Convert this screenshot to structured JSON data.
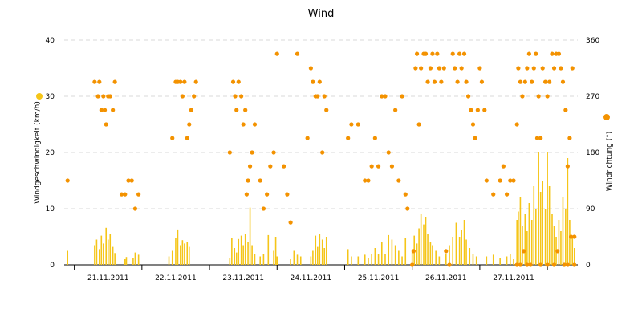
{
  "chart_data": {
    "type": "bar+scatter",
    "title": "Wind",
    "xlabel": "",
    "colors": {
      "speed": "#f5c518",
      "direction": "#f39200",
      "grid": "#d9d9d9",
      "axis": "#000000"
    },
    "grid": true,
    "x_tick_labels": [
      "21.11.2011",
      "22.11.2011",
      "23.11.2011",
      "24.11.2011",
      "25.11.2011",
      "26.11.2011",
      "27.11.2011"
    ],
    "left_axis": {
      "label": "Windgeschwindigkeit (km/h)",
      "ylim": [
        0,
        40
      ],
      "ticks": [
        0,
        10,
        20,
        30,
        40
      ]
    },
    "right_axis": {
      "label": "Windrichtung (°)",
      "ylim": [
        0,
        360
      ],
      "ticks": [
        0,
        90,
        180,
        270,
        360
      ]
    },
    "series": [
      {
        "name": "Windgeschwindigkeit",
        "kind": "bar",
        "axis": "left",
        "points": [
          [
            20.9,
            2.5
          ],
          [
            21.3,
            3.5
          ],
          [
            21.33,
            4.5
          ],
          [
            21.37,
            2.8
          ],
          [
            21.4,
            5.2
          ],
          [
            21.43,
            3.8
          ],
          [
            21.47,
            6.6
          ],
          [
            21.5,
            4.5
          ],
          [
            21.53,
            5.5
          ],
          [
            21.57,
            3.2
          ],
          [
            21.6,
            2.1
          ],
          [
            21.75,
            1.0
          ],
          [
            21.77,
            1.4
          ],
          [
            21.87,
            1.2
          ],
          [
            21.9,
            2.2
          ],
          [
            21.95,
            1.8
          ],
          [
            22.4,
            1.5
          ],
          [
            22.45,
            2.5
          ],
          [
            22.5,
            4.8
          ],
          [
            22.53,
            6.3
          ],
          [
            22.57,
            3.5
          ],
          [
            22.6,
            4.4
          ],
          [
            22.63,
            3.8
          ],
          [
            22.67,
            4.0
          ],
          [
            22.7,
            3.2
          ],
          [
            23.3,
            1.2
          ],
          [
            23.33,
            4.8
          ],
          [
            23.37,
            3.0
          ],
          [
            23.4,
            2.2
          ],
          [
            23.43,
            4.6
          ],
          [
            23.47,
            5.2
          ],
          [
            23.5,
            3.5
          ],
          [
            23.53,
            5.5
          ],
          [
            23.57,
            4.0
          ],
          [
            23.6,
            10.2
          ],
          [
            23.63,
            3.5
          ],
          [
            23.67,
            2.0
          ],
          [
            23.75,
            1.5
          ],
          [
            23.8,
            2.0
          ],
          [
            23.87,
            5.3
          ],
          [
            23.95,
            2.5
          ],
          [
            23.98,
            5.0
          ],
          [
            24.0,
            1.5
          ],
          [
            24.2,
            1.0
          ],
          [
            24.25,
            2.5
          ],
          [
            24.3,
            1.8
          ],
          [
            24.35,
            1.5
          ],
          [
            24.5,
            1.5
          ],
          [
            24.53,
            2.5
          ],
          [
            24.57,
            5.2
          ],
          [
            24.6,
            3.2
          ],
          [
            24.63,
            5.5
          ],
          [
            24.67,
            4.5
          ],
          [
            24.7,
            3.0
          ],
          [
            24.73,
            5.0
          ],
          [
            25.05,
            2.8
          ],
          [
            25.1,
            1.5
          ],
          [
            25.2,
            1.5
          ],
          [
            25.3,
            1.8
          ],
          [
            25.35,
            1.2
          ],
          [
            25.4,
            2.0
          ],
          [
            25.45,
            3.0
          ],
          [
            25.5,
            2.0
          ],
          [
            25.55,
            4.0
          ],
          [
            25.6,
            2.0
          ],
          [
            25.65,
            5.3
          ],
          [
            25.7,
            4.5
          ],
          [
            25.75,
            3.5
          ],
          [
            25.8,
            2.5
          ],
          [
            25.85,
            1.5
          ],
          [
            25.9,
            4.8
          ],
          [
            26.0,
            2.5
          ],
          [
            26.03,
            5.2
          ],
          [
            26.07,
            3.8
          ],
          [
            26.1,
            6.5
          ],
          [
            26.13,
            9.0
          ],
          [
            26.17,
            7.2
          ],
          [
            26.2,
            8.5
          ],
          [
            26.23,
            5.5
          ],
          [
            26.27,
            4.0
          ],
          [
            26.3,
            3.5
          ],
          [
            26.35,
            2.5
          ],
          [
            26.4,
            1.5
          ],
          [
            26.5,
            2.0
          ],
          [
            26.55,
            3.5
          ],
          [
            26.6,
            5.0
          ],
          [
            26.65,
            7.5
          ],
          [
            26.7,
            5.0
          ],
          [
            26.73,
            6.2
          ],
          [
            26.77,
            8.0
          ],
          [
            26.8,
            4.5
          ],
          [
            26.85,
            3.0
          ],
          [
            26.9,
            2.0
          ],
          [
            26.95,
            1.5
          ],
          [
            27.1,
            1.5
          ],
          [
            27.2,
            1.8
          ],
          [
            27.3,
            1.2
          ],
          [
            27.4,
            1.5
          ],
          [
            27.45,
            2.0
          ],
          [
            27.5,
            1.0
          ],
          [
            27.55,
            8.0
          ],
          [
            27.57,
            9.5
          ],
          [
            27.6,
            12.0
          ],
          [
            27.63,
            7.0
          ],
          [
            27.67,
            9.0
          ],
          [
            27.7,
            6.0
          ],
          [
            27.73,
            11.0
          ],
          [
            27.77,
            8.0
          ],
          [
            27.8,
            14.0
          ],
          [
            27.83,
            10.0
          ],
          [
            27.87,
            20.0
          ],
          [
            27.9,
            13.0
          ],
          [
            27.93,
            15.0
          ],
          [
            27.97,
            10.0
          ],
          [
            28.0,
            20.0
          ],
          [
            28.03,
            14.0
          ],
          [
            28.07,
            9.0
          ],
          [
            28.1,
            7.0
          ],
          [
            28.13,
            5.0
          ],
          [
            28.17,
            8.0
          ],
          [
            28.2,
            6.0
          ],
          [
            28.23,
            12.0
          ],
          [
            28.27,
            10.0
          ],
          [
            28.3,
            19.0
          ],
          [
            28.33,
            8.0
          ],
          [
            28.37,
            5.0
          ],
          [
            28.4,
            3.0
          ]
        ]
      },
      {
        "name": "Windrichtung",
        "kind": "scatter",
        "axis": "right",
        "points": [
          [
            20.9,
            135
          ],
          [
            21.3,
            293
          ],
          [
            21.35,
            270
          ],
          [
            21.37,
            293
          ],
          [
            21.4,
            248
          ],
          [
            21.43,
            270
          ],
          [
            21.45,
            248
          ],
          [
            21.47,
            225
          ],
          [
            21.5,
            270
          ],
          [
            21.53,
            270
          ],
          [
            21.57,
            248
          ],
          [
            21.6,
            293
          ],
          [
            21.7,
            113
          ],
          [
            21.75,
            113
          ],
          [
            21.8,
            135
          ],
          [
            21.85,
            135
          ],
          [
            21.9,
            90
          ],
          [
            21.95,
            113
          ],
          [
            22.45,
            203
          ],
          [
            22.5,
            293
          ],
          [
            22.53,
            293
          ],
          [
            22.57,
            293
          ],
          [
            22.6,
            270
          ],
          [
            22.63,
            293
          ],
          [
            22.67,
            203
          ],
          [
            22.7,
            225
          ],
          [
            22.73,
            248
          ],
          [
            22.77,
            270
          ],
          [
            22.8,
            293
          ],
          [
            23.3,
            180
          ],
          [
            23.35,
            293
          ],
          [
            23.38,
            270
          ],
          [
            23.4,
            248
          ],
          [
            23.43,
            293
          ],
          [
            23.47,
            270
          ],
          [
            23.5,
            225
          ],
          [
            23.53,
            248
          ],
          [
            23.55,
            113
          ],
          [
            23.57,
            135
          ],
          [
            23.6,
            158
          ],
          [
            23.63,
            180
          ],
          [
            23.67,
            225
          ],
          [
            23.75,
            135
          ],
          [
            23.8,
            90
          ],
          [
            23.85,
            113
          ],
          [
            23.9,
            158
          ],
          [
            23.95,
            180
          ],
          [
            24.0,
            338
          ],
          [
            24.1,
            158
          ],
          [
            24.15,
            113
          ],
          [
            24.2,
            68
          ],
          [
            24.3,
            338
          ],
          [
            24.45,
            203
          ],
          [
            24.5,
            315
          ],
          [
            24.53,
            293
          ],
          [
            24.57,
            270
          ],
          [
            24.6,
            270
          ],
          [
            24.63,
            293
          ],
          [
            24.67,
            180
          ],
          [
            24.7,
            270
          ],
          [
            24.73,
            248
          ],
          [
            25.05,
            203
          ],
          [
            25.1,
            225
          ],
          [
            25.2,
            225
          ],
          [
            25.3,
            135
          ],
          [
            25.35,
            135
          ],
          [
            25.4,
            158
          ],
          [
            25.45,
            203
          ],
          [
            25.5,
            158
          ],
          [
            25.55,
            270
          ],
          [
            25.6,
            270
          ],
          [
            25.65,
            180
          ],
          [
            25.7,
            158
          ],
          [
            25.75,
            248
          ],
          [
            25.8,
            135
          ],
          [
            25.85,
            270
          ],
          [
            25.9,
            113
          ],
          [
            25.93,
            90
          ],
          [
            26.0,
            0
          ],
          [
            26.02,
            22
          ],
          [
            26.05,
            315
          ],
          [
            26.07,
            338
          ],
          [
            26.1,
            225
          ],
          [
            26.13,
            315
          ],
          [
            26.17,
            338
          ],
          [
            26.2,
            338
          ],
          [
            26.23,
            293
          ],
          [
            26.27,
            315
          ],
          [
            26.3,
            338
          ],
          [
            26.33,
            293
          ],
          [
            26.37,
            338
          ],
          [
            26.4,
            315
          ],
          [
            26.43,
            293
          ],
          [
            26.47,
            315
          ],
          [
            26.5,
            22
          ],
          [
            26.55,
            0
          ],
          [
            26.6,
            338
          ],
          [
            26.63,
            315
          ],
          [
            26.67,
            293
          ],
          [
            26.7,
            338
          ],
          [
            26.73,
            315
          ],
          [
            26.77,
            338
          ],
          [
            26.8,
            293
          ],
          [
            26.83,
            270
          ],
          [
            26.87,
            248
          ],
          [
            26.9,
            225
          ],
          [
            26.93,
            203
          ],
          [
            26.97,
            248
          ],
          [
            27.0,
            315
          ],
          [
            27.03,
            293
          ],
          [
            27.07,
            248
          ],
          [
            27.1,
            135
          ],
          [
            27.2,
            113
          ],
          [
            27.3,
            135
          ],
          [
            27.35,
            158
          ],
          [
            27.4,
            113
          ],
          [
            27.45,
            135
          ],
          [
            27.5,
            135
          ],
          [
            27.55,
            225
          ],
          [
            27.57,
            315
          ],
          [
            27.6,
            293
          ],
          [
            27.63,
            270
          ],
          [
            27.67,
            293
          ],
          [
            27.7,
            315
          ],
          [
            27.73,
            338
          ],
          [
            27.77,
            293
          ],
          [
            27.8,
            315
          ],
          [
            27.83,
            338
          ],
          [
            27.87,
            270
          ],
          [
            27.9,
            203
          ],
          [
            27.93,
            315
          ],
          [
            27.97,
            293
          ],
          [
            28.0,
            270
          ],
          [
            28.03,
            293
          ],
          [
            28.07,
            338
          ],
          [
            28.1,
            315
          ],
          [
            28.13,
            338
          ],
          [
            28.17,
            338
          ],
          [
            28.2,
            315
          ],
          [
            28.23,
            293
          ],
          [
            28.27,
            248
          ],
          [
            28.3,
            158
          ],
          [
            28.33,
            203
          ],
          [
            28.37,
            315
          ],
          [
            28.4,
            45
          ],
          [
            27.55,
            0
          ],
          [
            27.6,
            0
          ],
          [
            27.65,
            22
          ],
          [
            27.7,
            0
          ],
          [
            27.75,
            0
          ],
          [
            27.85,
            203
          ],
          [
            27.9,
            0
          ],
          [
            28.0,
            0
          ],
          [
            28.1,
            0
          ],
          [
            28.15,
            22
          ],
          [
            28.25,
            0
          ],
          [
            28.3,
            0
          ],
          [
            28.35,
            45
          ],
          [
            28.4,
            0
          ]
        ]
      }
    ]
  }
}
